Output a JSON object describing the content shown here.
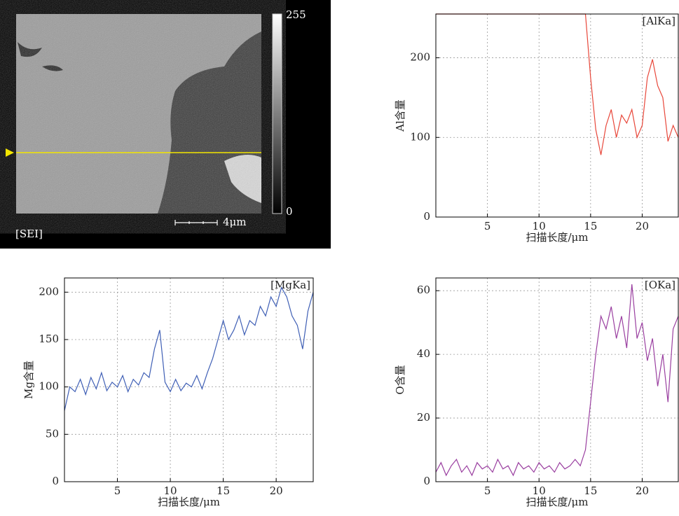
{
  "sem_image": {
    "label": "[SEI]",
    "colorbar_max": "255",
    "colorbar_min": "0",
    "scale_bar": "4μm"
  },
  "chart_data": [
    {
      "type": "line",
      "y_label": "Al含量",
      "x_label": "扫描长度/μm",
      "xlim": [
        0,
        23.5
      ],
      "ylim": [
        0,
        255
      ],
      "xticks": [
        5,
        10,
        15,
        20
      ],
      "yticks": [
        0,
        100,
        200
      ],
      "grid": true,
      "x": [
        0,
        0.5,
        1,
        1.5,
        2,
        2.5,
        3,
        3.5,
        4,
        4.5,
        5,
        5.5,
        6,
        6.5,
        7,
        7.5,
        8,
        8.5,
        9,
        9.5,
        10,
        10.5,
        11,
        11.5,
        12,
        12.5,
        13,
        13.5,
        14,
        14.5,
        15,
        15.5,
        16,
        16.5,
        17,
        17.5,
        18,
        18.5,
        19,
        19.5,
        20,
        20.5,
        21,
        21.5,
        22,
        22.5,
        23,
        23.5
      ],
      "series": [
        {
          "name": "[AlKa]",
          "color": "#e8473a",
          "values": [
            255,
            255,
            255,
            255,
            255,
            255,
            255,
            255,
            255,
            255,
            255,
            255,
            255,
            255,
            255,
            255,
            255,
            255,
            255,
            255,
            255,
            255,
            255,
            255,
            255,
            255,
            255,
            255,
            255,
            255,
            175,
            110,
            78,
            115,
            135,
            100,
            128,
            118,
            135,
            100,
            115,
            175,
            198,
            165,
            150,
            95,
            115,
            100
          ]
        }
      ]
    },
    {
      "type": "line",
      "y_label": "Mg含量",
      "x_label": "扫描长度/μm",
      "xlim": [
        0,
        23.5
      ],
      "ylim": [
        0,
        215
      ],
      "xticks": [
        5,
        10,
        15,
        20
      ],
      "yticks": [
        0,
        50,
        100,
        150,
        200
      ],
      "grid": true,
      "x": [
        0,
        0.5,
        1,
        1.5,
        2,
        2.5,
        3,
        3.5,
        4,
        4.5,
        5,
        5.5,
        6,
        6.5,
        7,
        7.5,
        8,
        8.5,
        9,
        9.5,
        10,
        10.5,
        11,
        11.5,
        12,
        12.5,
        13,
        13.5,
        14,
        14.5,
        15,
        15.5,
        16,
        16.5,
        17,
        17.5,
        18,
        18.5,
        19,
        19.5,
        20,
        20.5,
        21,
        21.5,
        22,
        22.5,
        23,
        23.5
      ],
      "series": [
        {
          "name": "[MgKa]",
          "color": "#3f5fb5",
          "values": [
            75,
            100,
            95,
            108,
            92,
            110,
            98,
            115,
            96,
            105,
            100,
            112,
            95,
            108,
            102,
            115,
            110,
            140,
            160,
            105,
            95,
            108,
            96,
            104,
            100,
            112,
            98,
            115,
            130,
            150,
            170,
            150,
            160,
            175,
            155,
            170,
            165,
            185,
            175,
            195,
            185,
            205,
            195,
            175,
            165,
            140,
            180,
            200
          ]
        }
      ]
    },
    {
      "type": "line",
      "y_label": "O含量",
      "x_label": "扫描长度/μm",
      "xlim": [
        0,
        23.5
      ],
      "ylim": [
        0,
        64
      ],
      "xticks": [
        5,
        10,
        15,
        20
      ],
      "yticks": [
        0,
        20,
        40,
        60
      ],
      "grid": true,
      "x": [
        0,
        0.5,
        1,
        1.5,
        2,
        2.5,
        3,
        3.5,
        4,
        4.5,
        5,
        5.5,
        6,
        6.5,
        7,
        7.5,
        8,
        8.5,
        9,
        9.5,
        10,
        10.5,
        11,
        11.5,
        12,
        12.5,
        13,
        13.5,
        14,
        14.5,
        15,
        15.5,
        16,
        16.5,
        17,
        17.5,
        18,
        18.5,
        19,
        19.5,
        20,
        20.5,
        21,
        21.5,
        22,
        22.5,
        23,
        23.5
      ],
      "series": [
        {
          "name": "[OKa]",
          "color": "#9a3fa0",
          "values": [
            3,
            6,
            2,
            5,
            7,
            3,
            5,
            2,
            6,
            4,
            5,
            3,
            7,
            4,
            5,
            2,
            6,
            4,
            5,
            3,
            6,
            4,
            5,
            3,
            6,
            4,
            5,
            7,
            5,
            10,
            25,
            40,
            52,
            48,
            55,
            45,
            52,
            42,
            62,
            45,
            50,
            38,
            45,
            30,
            40,
            25,
            48,
            52
          ]
        }
      ]
    }
  ]
}
